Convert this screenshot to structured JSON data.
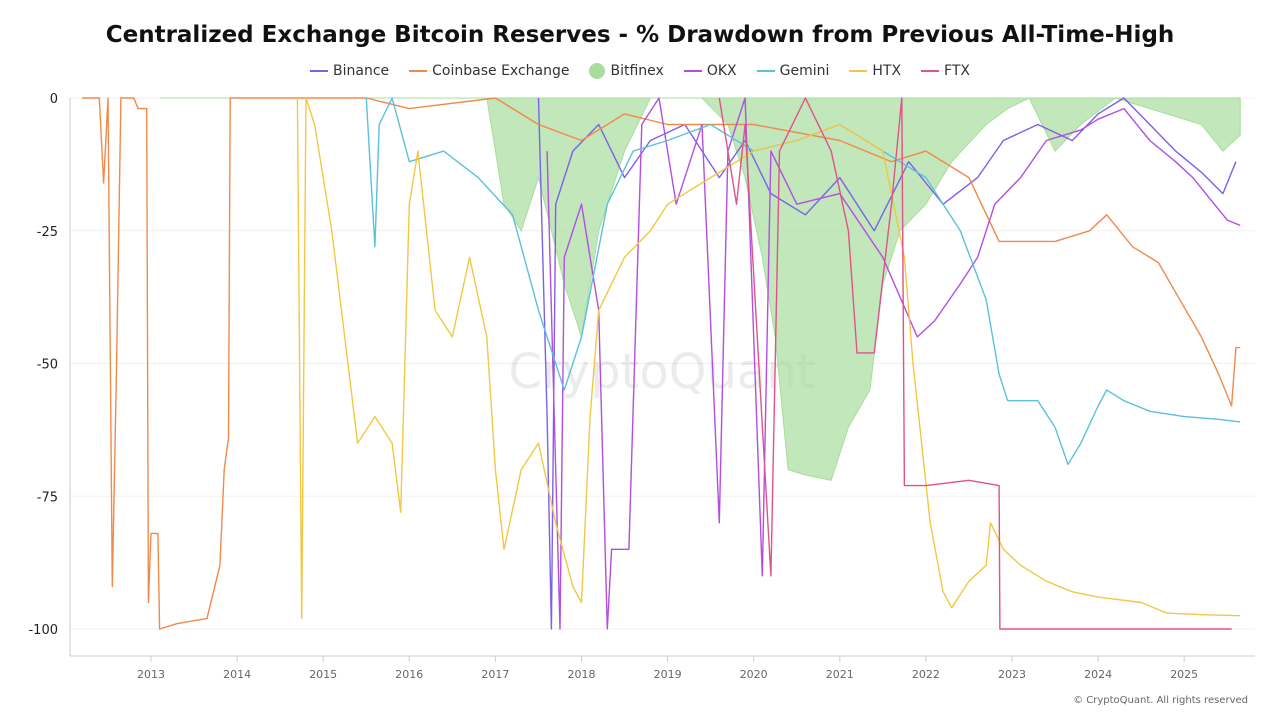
{
  "chart_data": {
    "type": "line",
    "title": "Centralized Exchange Bitcoin Reserves - % Drawdown from Previous All-Time-High",
    "watermark": "CryptoQuant",
    "credit": "© CryptoQuant. All rights reserved",
    "xlim": [
      2012.1,
      2025.85
    ],
    "ylim": [
      -105,
      0
    ],
    "x_ticks": [
      "2013",
      "2014",
      "2015",
      "2016",
      "2017",
      "2018",
      "2019",
      "2020",
      "2021",
      "2022",
      "2023",
      "2024",
      "2025"
    ],
    "y_ticks": [
      0,
      -25,
      -50,
      -75,
      -100
    ],
    "grid": true,
    "legend_placement": "top",
    "series": [
      {
        "name": "Binance",
        "color": "#7b61e8",
        "style": "line",
        "points": [
          [
            2017.5,
            0
          ],
          [
            2017.6,
            -60
          ],
          [
            2017.65,
            -100
          ],
          [
            2017.7,
            -20
          ],
          [
            2017.9,
            -10
          ],
          [
            2018.2,
            -5
          ],
          [
            2018.5,
            -15
          ],
          [
            2018.8,
            -8
          ],
          [
            2019.2,
            -5
          ],
          [
            2019.6,
            -15
          ],
          [
            2019.9,
            -8
          ],
          [
            2020.2,
            -18
          ],
          [
            2020.6,
            -22
          ],
          [
            2021.0,
            -15
          ],
          [
            2021.4,
            -25
          ],
          [
            2021.8,
            -12
          ],
          [
            2022.2,
            -20
          ],
          [
            2022.6,
            -15
          ],
          [
            2022.9,
            -8
          ],
          [
            2023.3,
            -5
          ],
          [
            2023.7,
            -8
          ],
          [
            2024.0,
            -3
          ],
          [
            2024.3,
            0
          ],
          [
            2024.6,
            -5
          ],
          [
            2024.9,
            -10
          ],
          [
            2025.2,
            -14
          ],
          [
            2025.45,
            -18
          ],
          [
            2025.6,
            -12
          ]
        ]
      },
      {
        "name": "Coinbase Exchange",
        "color": "#f08a4b",
        "style": "line",
        "points": [
          [
            2012.2,
            0
          ],
          [
            2012.4,
            0
          ],
          [
            2012.45,
            -16
          ],
          [
            2012.5,
            0
          ],
          [
            2012.55,
            -92
          ],
          [
            2012.6,
            -50
          ],
          [
            2012.65,
            0
          ],
          [
            2012.8,
            0
          ],
          [
            2012.85,
            -2
          ],
          [
            2012.95,
            -2
          ],
          [
            2012.97,
            -95
          ],
          [
            2013.0,
            -82
          ],
          [
            2013.08,
            -82
          ],
          [
            2013.1,
            -100
          ],
          [
            2013.3,
            -99
          ],
          [
            2013.65,
            -98
          ],
          [
            2013.8,
            -88
          ],
          [
            2013.85,
            -70
          ],
          [
            2013.9,
            -64
          ],
          [
            2013.92,
            0
          ],
          [
            2015.5,
            0
          ],
          [
            2016.0,
            -2
          ],
          [
            2017.0,
            0
          ],
          [
            2017.5,
            -5
          ],
          [
            2018.0,
            -8
          ],
          [
            2018.5,
            -3
          ],
          [
            2019.0,
            -5
          ],
          [
            2020.0,
            -5
          ],
          [
            2021.0,
            -8
          ],
          [
            2021.6,
            -12
          ],
          [
            2022.0,
            -10
          ],
          [
            2022.5,
            -15
          ],
          [
            2022.85,
            -27
          ],
          [
            2023.5,
            -27
          ],
          [
            2023.9,
            -25
          ],
          [
            2024.1,
            -22
          ],
          [
            2024.4,
            -28
          ],
          [
            2024.7,
            -31
          ],
          [
            2024.95,
            -38
          ],
          [
            2025.2,
            -45
          ],
          [
            2025.4,
            -52
          ],
          [
            2025.55,
            -58
          ],
          [
            2025.6,
            -47
          ],
          [
            2025.65,
            -47
          ]
        ]
      },
      {
        "name": "Bitfinex",
        "color": "#a8dd9c",
        "style": "area",
        "points": [
          [
            2013.1,
            0
          ],
          [
            2016.9,
            0
          ],
          [
            2017.1,
            -20
          ],
          [
            2017.3,
            -25
          ],
          [
            2017.5,
            -15
          ],
          [
            2017.8,
            -35
          ],
          [
            2018.0,
            -45
          ],
          [
            2018.2,
            -25
          ],
          [
            2018.5,
            -10
          ],
          [
            2018.8,
            0
          ],
          [
            2019.4,
            0
          ],
          [
            2019.7,
            -5
          ],
          [
            2019.9,
            -15
          ],
          [
            2020.1,
            -30
          ],
          [
            2020.25,
            -45
          ],
          [
            2020.4,
            -70
          ],
          [
            2020.6,
            -71
          ],
          [
            2020.9,
            -72
          ],
          [
            2021.1,
            -62
          ],
          [
            2021.35,
            -55
          ],
          [
            2021.5,
            -35
          ],
          [
            2021.7,
            -25
          ],
          [
            2022.0,
            -20
          ],
          [
            2022.3,
            -12
          ],
          [
            2022.7,
            -5
          ],
          [
            2022.95,
            -2
          ],
          [
            2023.2,
            0
          ],
          [
            2023.5,
            -10
          ],
          [
            2023.8,
            -5
          ],
          [
            2024.2,
            0
          ],
          [
            2024.8,
            -3
          ],
          [
            2025.2,
            -5
          ],
          [
            2025.45,
            -10
          ],
          [
            2025.65,
            -7
          ],
          [
            2025.65,
            0
          ]
        ]
      },
      {
        "name": "OKX",
        "color": "#b34ee0",
        "style": "line",
        "points": [
          [
            2017.6,
            -10
          ],
          [
            2017.75,
            -100
          ],
          [
            2017.8,
            -30
          ],
          [
            2018.0,
            -20
          ],
          [
            2018.2,
            -40
          ],
          [
            2018.3,
            -100
          ],
          [
            2018.35,
            -85
          ],
          [
            2018.55,
            -85
          ],
          [
            2018.7,
            -5
          ],
          [
            2018.9,
            0
          ],
          [
            2019.1,
            -20
          ],
          [
            2019.4,
            -5
          ],
          [
            2019.6,
            -80
          ],
          [
            2019.7,
            -10
          ],
          [
            2019.9,
            0
          ],
          [
            2020.1,
            -90
          ],
          [
            2020.2,
            -10
          ],
          [
            2020.5,
            -20
          ],
          [
            2021.0,
            -18
          ],
          [
            2021.5,
            -30
          ],
          [
            2021.9,
            -45
          ],
          [
            2022.1,
            -42
          ],
          [
            2022.4,
            -35
          ],
          [
            2022.6,
            -30
          ],
          [
            2022.8,
            -20
          ],
          [
            2023.1,
            -15
          ],
          [
            2023.4,
            -8
          ],
          [
            2023.8,
            -6
          ],
          [
            2024.0,
            -4
          ],
          [
            2024.3,
            -2
          ],
          [
            2024.6,
            -8
          ],
          [
            2024.9,
            -12
          ],
          [
            2025.1,
            -15
          ],
          [
            2025.35,
            -20
          ],
          [
            2025.5,
            -23
          ],
          [
            2025.65,
            -24
          ]
        ]
      },
      {
        "name": "Gemini",
        "color": "#5bc0de",
        "style": "line",
        "points": [
          [
            2015.5,
            0
          ],
          [
            2015.6,
            -28
          ],
          [
            2015.65,
            -5
          ],
          [
            2015.8,
            0
          ],
          [
            2016.0,
            -12
          ],
          [
            2016.4,
            -10
          ],
          [
            2016.8,
            -15
          ],
          [
            2017.2,
            -22
          ],
          [
            2017.5,
            -40
          ],
          [
            2017.8,
            -55
          ],
          [
            2018.0,
            -45
          ],
          [
            2018.3,
            -20
          ],
          [
            2018.6,
            -10
          ],
          [
            2019.0,
            -8
          ],
          [
            2019.5,
            -5
          ],
          [
            2020.0,
            -10
          ],
          [
            2020.5,
            -8
          ],
          [
            2021.0,
            -5
          ],
          [
            2021.5,
            -10
          ],
          [
            2022.0,
            -15
          ],
          [
            2022.4,
            -25
          ],
          [
            2022.7,
            -38
          ],
          [
            2022.85,
            -52
          ],
          [
            2022.95,
            -57
          ],
          [
            2023.3,
            -57
          ],
          [
            2023.5,
            -62
          ],
          [
            2023.65,
            -69
          ],
          [
            2023.8,
            -65
          ],
          [
            2024.0,
            -58
          ],
          [
            2024.1,
            -55
          ],
          [
            2024.3,
            -57
          ],
          [
            2024.6,
            -59
          ],
          [
            2025.0,
            -60
          ],
          [
            2025.4,
            -60.5
          ],
          [
            2025.65,
            -61
          ]
        ]
      },
      {
        "name": "HTX",
        "color": "#f2c744",
        "style": "line",
        "points": [
          [
            2014.7,
            0
          ],
          [
            2014.75,
            -98
          ],
          [
            2014.8,
            0
          ],
          [
            2014.9,
            -5
          ],
          [
            2015.1,
            -25
          ],
          [
            2015.25,
            -45
          ],
          [
            2015.4,
            -65
          ],
          [
            2015.6,
            -60
          ],
          [
            2015.8,
            -65
          ],
          [
            2015.9,
            -78
          ],
          [
            2016.0,
            -20
          ],
          [
            2016.1,
            -10
          ],
          [
            2016.3,
            -40
          ],
          [
            2016.5,
            -45
          ],
          [
            2016.7,
            -30
          ],
          [
            2016.9,
            -45
          ],
          [
            2017.0,
            -70
          ],
          [
            2017.1,
            -85
          ],
          [
            2017.3,
            -70
          ],
          [
            2017.5,
            -65
          ],
          [
            2017.7,
            -80
          ],
          [
            2017.9,
            -92
          ],
          [
            2018.0,
            -95
          ],
          [
            2018.1,
            -60
          ],
          [
            2018.2,
            -40
          ],
          [
            2018.5,
            -30
          ],
          [
            2018.8,
            -25
          ],
          [
            2019.0,
            -20
          ],
          [
            2019.5,
            -15
          ],
          [
            2020.0,
            -10
          ],
          [
            2020.5,
            -8
          ],
          [
            2021.0,
            -5
          ],
          [
            2021.5,
            -10
          ],
          [
            2021.75,
            -30
          ],
          [
            2021.85,
            -50
          ],
          [
            2021.95,
            -65
          ],
          [
            2022.05,
            -80
          ],
          [
            2022.2,
            -93
          ],
          [
            2022.3,
            -96
          ],
          [
            2022.5,
            -91
          ],
          [
            2022.7,
            -88
          ],
          [
            2022.75,
            -80
          ],
          [
            2022.9,
            -85
          ],
          [
            2023.1,
            -88
          ],
          [
            2023.4,
            -91
          ],
          [
            2023.7,
            -93
          ],
          [
            2024.0,
            -94
          ],
          [
            2024.5,
            -95
          ],
          [
            2024.8,
            -97
          ],
          [
            2025.2,
            -97.3
          ],
          [
            2025.65,
            -97.5
          ]
        ]
      },
      {
        "name": "FTX",
        "color": "#e0528a",
        "style": "line",
        "points": [
          [
            2019.6,
            0
          ],
          [
            2019.8,
            -20
          ],
          [
            2019.9,
            -5
          ],
          [
            2020.2,
            -90
          ],
          [
            2020.3,
            -10
          ],
          [
            2020.6,
            0
          ],
          [
            2020.9,
            -10
          ],
          [
            2021.1,
            -25
          ],
          [
            2021.2,
            -48
          ],
          [
            2021.4,
            -48
          ],
          [
            2021.6,
            -20
          ],
          [
            2021.72,
            0
          ],
          [
            2021.75,
            -73
          ],
          [
            2022.0,
            -73
          ],
          [
            2022.5,
            -72
          ],
          [
            2022.85,
            -73
          ],
          [
            2022.86,
            -100
          ],
          [
            2025.55,
            -100
          ]
        ]
      }
    ]
  }
}
